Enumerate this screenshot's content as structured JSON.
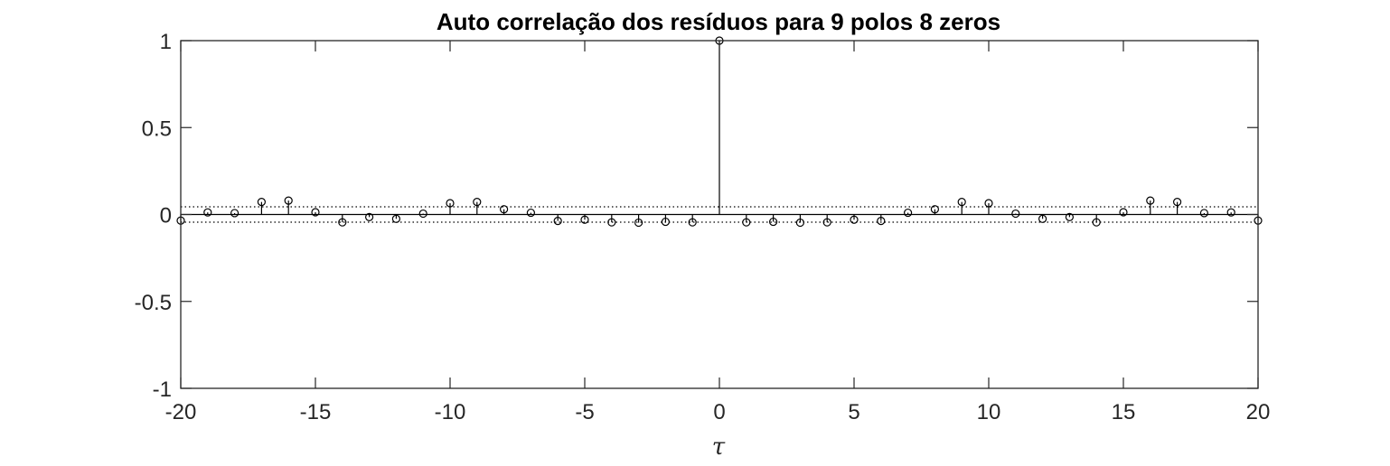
{
  "chart_data": {
    "type": "stem",
    "title": "Auto correlação dos resíduos para 9 polos 8 zeros",
    "xlabel": "τ",
    "ylabel": "",
    "xlim": [
      -20,
      20
    ],
    "ylim": [
      -1,
      1
    ],
    "xticks": [
      "-20",
      "-15",
      "-10",
      "-5",
      "0",
      "5",
      "10",
      "15",
      "20"
    ],
    "xtick_values": [
      -20,
      -15,
      -10,
      -5,
      0,
      5,
      10,
      15,
      20
    ],
    "yticks": [
      "-1",
      "-0.5",
      "0",
      "0.5",
      "1"
    ],
    "ytick_values": [
      -1,
      -0.5,
      0,
      0.5,
      1
    ],
    "confidence_bounds": [
      0.044,
      -0.044
    ],
    "grid": false,
    "series": [
      {
        "x": [
          -20,
          -19,
          -18,
          -17,
          -16,
          -15,
          -14,
          -13,
          -12,
          -11,
          -10,
          -9,
          -8,
          -7,
          -6,
          -5,
          -4,
          -3,
          -2,
          -1,
          0,
          1,
          2,
          3,
          4,
          5,
          6,
          7,
          8,
          9,
          10,
          11,
          12,
          13,
          14,
          15,
          16,
          17,
          18,
          19,
          20
        ],
        "values": [
          -0.035,
          0.012,
          0.008,
          0.072,
          0.08,
          0.013,
          -0.045,
          -0.015,
          -0.025,
          0.005,
          0.065,
          0.072,
          0.03,
          0.01,
          -0.037,
          -0.03,
          -0.045,
          -0.047,
          -0.042,
          -0.045,
          1.0,
          -0.045,
          -0.042,
          -0.047,
          -0.045,
          -0.03,
          -0.037,
          0.01,
          0.03,
          0.072,
          0.065,
          0.005,
          -0.025,
          -0.015,
          -0.045,
          0.013,
          0.08,
          0.072,
          0.008,
          0.012,
          -0.035
        ]
      }
    ],
    "colors": {
      "stem": "#000000",
      "axes": "#262626",
      "bounds": "#000000"
    }
  }
}
